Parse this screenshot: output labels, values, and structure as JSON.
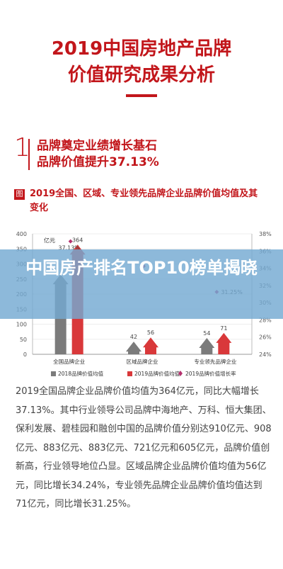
{
  "header": {
    "title_line1": "2019中国房地产品牌",
    "title_line2": "价值研究成果分析"
  },
  "section": {
    "number": "1",
    "line1": "品牌奠定业绩增长基石",
    "line2": "品牌价值提升37.13%"
  },
  "figure": {
    "badge": "图",
    "title": "2019全国、区域、专业领先品牌企业品牌价值均值及其变化"
  },
  "banner": {
    "text": "中国房产排名TOP10榜单揭晓",
    "color": "#74aad2"
  },
  "colors": {
    "accent": "#c2161b",
    "bar_2018": "#7b7b7b",
    "bar_2019": "#d9383a",
    "growth_marker": "#b5316e"
  },
  "chart_data": {
    "type": "bar",
    "ylabel": "亿元",
    "categories": [
      "全国品牌企业",
      "区域品牌企业",
      "专业领先品牌企业"
    ],
    "series": [
      {
        "name": "2018品牌价值均值",
        "values": [
          265.5,
          42,
          54
        ]
      },
      {
        "name": "2019品牌价值均值",
        "values": [
          364,
          56,
          71
        ]
      },
      {
        "name": "2019品牌价值增长率",
        "axis": "right",
        "values": [
          37.13,
          34.24,
          31.25
        ]
      }
    ],
    "bar_value_labels": [
      "",
      "364",
      "42",
      "56",
      "54",
      "71"
    ],
    "growth_labels": [
      "37.13%",
      "",
      "31.25%"
    ],
    "ylim": [
      0,
      400
    ],
    "y_ticks": [
      "0",
      "50",
      "100",
      "150",
      "200",
      "250",
      "300",
      "350",
      "400"
    ],
    "y2lim": [
      24,
      38
    ],
    "y2_ticks": [
      "24%",
      "26%",
      "28%",
      "30%",
      "32%",
      "34%",
      "36%",
      "38%"
    ],
    "legend_position": "bottom",
    "grid": true
  },
  "body": {
    "paragraph": "2019全国品牌企业品牌价值均值为364亿元，同比大幅增长37.13%。其中行业领导公司品牌中海地产、万科、恒大集团、保利发展、碧桂园和融创中国的品牌价值分别达910亿元、908亿元、883亿元、883亿元、721亿元和605亿元，品牌价值创新高，行业领导地位凸显。区域品牌企业品牌价值均值为56亿元，同比增长34.24%，专业领先品牌企业品牌价值均值达到71亿元，同比增长31.25%。"
  }
}
